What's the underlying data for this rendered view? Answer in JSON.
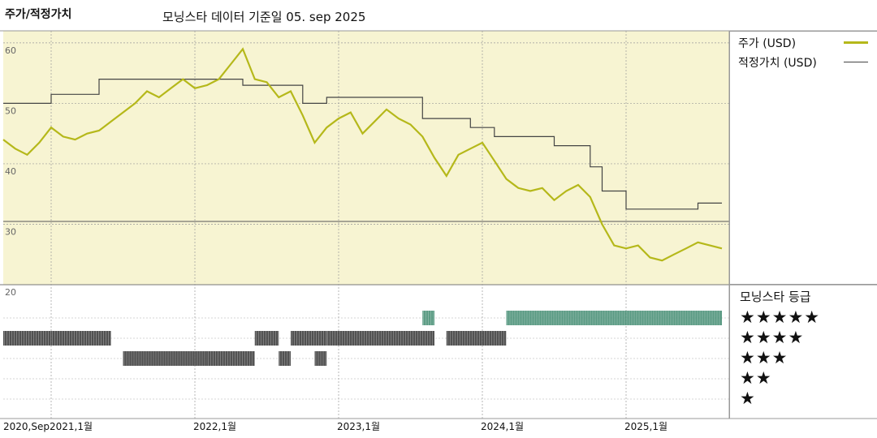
{
  "header": {
    "title": "주가/적정가치",
    "subtitle": "모닝스타 데이터 기준일 05. sep 2025"
  },
  "legend": {
    "price_label": "주가 (USD)",
    "fair_value_label": "적정가치 (USD)",
    "price_color": "#b5b81a",
    "fair_value_color": "#444444"
  },
  "rating_panel": {
    "title": "모닝스타 등급",
    "rows": [
      "★★★★★",
      "★★★★",
      "★★★",
      "★★",
      "★"
    ],
    "bar_colors": {
      "5": "#3e8a6e",
      "4": "#333333",
      "3": "#333333"
    }
  },
  "chart_data": {
    "type": "line",
    "title": "주가/적정가치",
    "y_ticks": [
      60,
      50,
      40,
      30,
      20
    ],
    "ylim": [
      20,
      62
    ],
    "x_tick_labels": [
      "2020,Sep",
      "2021,1월",
      "2022,1월",
      "2023,1월",
      "2024,1월",
      "2025,1월"
    ],
    "x_tick_dates": [
      "2020-09",
      "2021-01",
      "2022-01",
      "2023-01",
      "2024-01",
      "2025-01"
    ],
    "xlim": [
      "2020-09",
      "2025-09"
    ],
    "plot_background": "#f7f4d2",
    "series": [
      {
        "name": "주가 (USD)",
        "points": [
          [
            "2020-09",
            44.0
          ],
          [
            "2020-10",
            42.5
          ],
          [
            "2020-11",
            41.5
          ],
          [
            "2020-12",
            43.5
          ],
          [
            "2021-01",
            46.0
          ],
          [
            "2021-02",
            44.5
          ],
          [
            "2021-03",
            44.0
          ],
          [
            "2021-04",
            45.0
          ],
          [
            "2021-05",
            45.5
          ],
          [
            "2021-06",
            47.0
          ],
          [
            "2021-07",
            48.5
          ],
          [
            "2021-08",
            50.0
          ],
          [
            "2021-09",
            52.0
          ],
          [
            "2021-10",
            51.0
          ],
          [
            "2021-11",
            52.5
          ],
          [
            "2021-12",
            54.0
          ],
          [
            "2022-01",
            52.5
          ],
          [
            "2022-02",
            53.0
          ],
          [
            "2022-03",
            54.0
          ],
          [
            "2022-04",
            56.5
          ],
          [
            "2022-05",
            59.0
          ],
          [
            "2022-06",
            54.0
          ],
          [
            "2022-07",
            53.5
          ],
          [
            "2022-08",
            51.0
          ],
          [
            "2022-09",
            52.0
          ],
          [
            "2022-10",
            48.0
          ],
          [
            "2022-11",
            43.5
          ],
          [
            "2022-12",
            46.0
          ],
          [
            "2023-01",
            47.5
          ],
          [
            "2023-02",
            48.5
          ],
          [
            "2023-03",
            45.0
          ],
          [
            "2023-04",
            47.0
          ],
          [
            "2023-05",
            49.0
          ],
          [
            "2023-06",
            47.5
          ],
          [
            "2023-07",
            46.5
          ],
          [
            "2023-08",
            44.5
          ],
          [
            "2023-09",
            41.0
          ],
          [
            "2023-10",
            38.0
          ],
          [
            "2023-11",
            41.5
          ],
          [
            "2023-12",
            42.5
          ],
          [
            "2024-01",
            43.5
          ],
          [
            "2024-02",
            40.5
          ],
          [
            "2024-03",
            37.5
          ],
          [
            "2024-04",
            36.0
          ],
          [
            "2024-05",
            35.5
          ],
          [
            "2024-06",
            36.0
          ],
          [
            "2024-07",
            34.0
          ],
          [
            "2024-08",
            35.5
          ],
          [
            "2024-09",
            36.5
          ],
          [
            "2024-10",
            34.5
          ],
          [
            "2024-11",
            30.0
          ],
          [
            "2024-12",
            26.5
          ],
          [
            "2025-01",
            26.0
          ],
          [
            "2025-02",
            26.5
          ],
          [
            "2025-03",
            24.5
          ],
          [
            "2025-04",
            24.0
          ],
          [
            "2025-05",
            25.0
          ],
          [
            "2025-06",
            26.0
          ],
          [
            "2025-07",
            27.0
          ],
          [
            "2025-08",
            26.5
          ],
          [
            "2025-09",
            26.0
          ]
        ]
      },
      {
        "name": "적정가치 (USD)",
        "step": true,
        "points": [
          [
            "2020-09",
            50.0
          ],
          [
            "2021-01",
            51.5
          ],
          [
            "2021-05",
            54.0
          ],
          [
            "2022-02",
            54.0
          ],
          [
            "2022-05",
            53.0
          ],
          [
            "2022-10",
            50.0
          ],
          [
            "2022-12",
            51.0
          ],
          [
            "2023-08",
            47.5
          ],
          [
            "2023-12",
            46.0
          ],
          [
            "2024-02",
            44.5
          ],
          [
            "2024-07",
            43.0
          ],
          [
            "2024-10",
            39.5
          ],
          [
            "2024-11",
            35.5
          ],
          [
            "2025-01",
            32.5
          ],
          [
            "2025-07",
            32.5
          ],
          [
            "2025-07",
            33.5
          ],
          [
            "2025-09",
            33.5
          ]
        ]
      }
    ],
    "rating_history": [
      {
        "stars": 4,
        "start": "2020-09",
        "end": "2021-01"
      },
      {
        "stars": 4,
        "start": "2021-01",
        "end": "2021-06"
      },
      {
        "stars": 3,
        "start": "2021-07",
        "end": "2022-02"
      },
      {
        "stars": 3,
        "start": "2022-02",
        "end": "2022-06"
      },
      {
        "stars": 4,
        "start": "2022-06",
        "end": "2022-08"
      },
      {
        "stars": 3,
        "start": "2022-08",
        "end": "2022-09"
      },
      {
        "stars": 4,
        "start": "2022-09",
        "end": "2022-12"
      },
      {
        "stars": 3,
        "start": "2022-11",
        "end": "2022-12"
      },
      {
        "stars": 4,
        "start": "2022-12",
        "end": "2023-09"
      },
      {
        "stars": 5,
        "start": "2023-08",
        "end": "2023-09"
      },
      {
        "stars": 4,
        "start": "2023-10",
        "end": "2024-03"
      },
      {
        "stars": 5,
        "start": "2024-03",
        "end": "2025-09"
      }
    ],
    "grid": true
  }
}
